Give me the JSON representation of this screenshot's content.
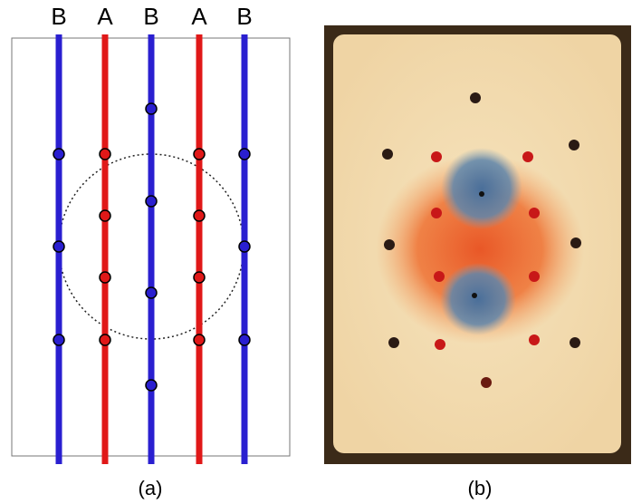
{
  "panel_a": {
    "line_labels": [
      "B",
      "A",
      "B",
      "A",
      "B"
    ],
    "caption": "(a)"
  },
  "panel_b": {
    "caption": "(b)"
  }
}
